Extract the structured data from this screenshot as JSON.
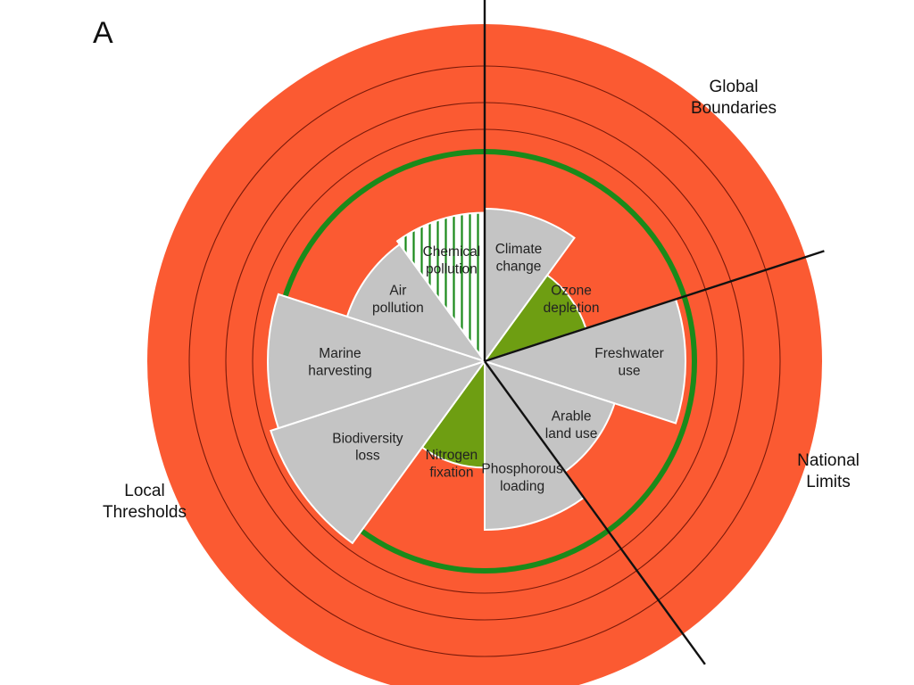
{
  "panel_letter": "A",
  "colors": {
    "danger": "#fb5a32",
    "safe_ring": "#1a8a1a",
    "within_boundary": "#6e9e12",
    "overshoot": "#c4c4c4",
    "divider": "#111111",
    "ring_line": "#7a1a0a"
  },
  "regions": [
    {
      "name": "global",
      "line1": "Global",
      "line2": "Boundaries"
    },
    {
      "name": "national",
      "line1": "National",
      "line2": "Limits"
    },
    {
      "name": "local",
      "line1": "Local",
      "line2": "Thresholds"
    }
  ],
  "segments": [
    {
      "name": "climate-change",
      "line1": "Climate",
      "line2": "change",
      "status": "overshoot",
      "level": 0.76
    },
    {
      "name": "ozone-depletion",
      "line1": "Ozone",
      "line2": "depletion",
      "status": "within",
      "level": 0.53
    },
    {
      "name": "freshwater-use",
      "line1": "Freshwater",
      "line2": "use",
      "status": "overshoot",
      "level": 1.0
    },
    {
      "name": "arable-land-use",
      "line1": "Arable",
      "line2": "land use",
      "status": "overshoot",
      "level": 0.68
    },
    {
      "name": "phosphorous-loading",
      "line1": "Phosphorous",
      "line2": "loading",
      "status": "overshoot",
      "level": 0.84
    },
    {
      "name": "nitrogen-fixation",
      "line1": "Nitrogen",
      "line2": "fixation",
      "status": "within",
      "level": 0.53
    },
    {
      "name": "biodiversity-loss",
      "line1": "Biodiversity",
      "line2": "loss",
      "status": "overshoot",
      "level": 1.12
    },
    {
      "name": "marine-harvesting",
      "line1": "Marine",
      "line2": "harvesting",
      "status": "overshoot",
      "level": 1.08
    },
    {
      "name": "air-pollution",
      "line1": "Air",
      "line2": "pollution",
      "status": "overshoot",
      "level": 0.72
    },
    {
      "name": "chemical-pollution",
      "line1": "Chemical",
      "line2": "pollution",
      "status": "unknown",
      "level": 0.74
    }
  ]
}
